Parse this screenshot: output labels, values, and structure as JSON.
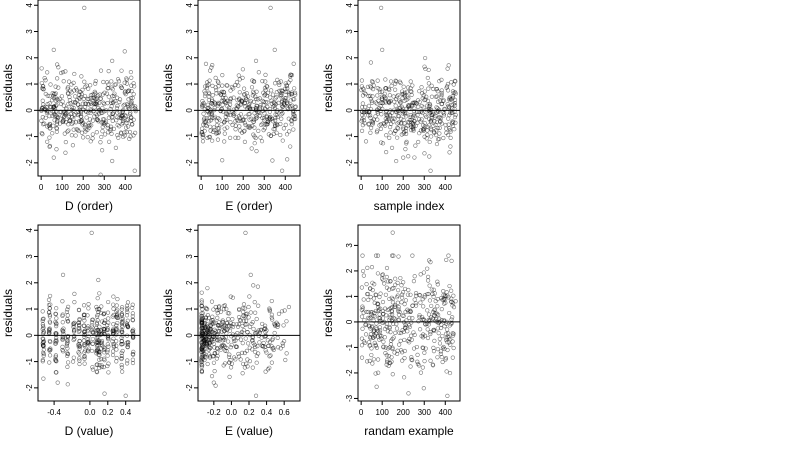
{
  "figure": {
    "background": "#ffffff",
    "point_color": "#000000",
    "zero_line_color": "#000000"
  },
  "chart_data": [
    {
      "type": "scatter",
      "title": "",
      "xlabel": "D (order)",
      "ylabel": "residuals",
      "xlim": [
        -15,
        470
      ],
      "ylim": [
        -2.5,
        4.2
      ],
      "xticks": [
        "0",
        "100",
        "200",
        "300",
        "400"
      ],
      "xtick_values": [
        0,
        100,
        200,
        300,
        400
      ],
      "yticks": [
        "-2",
        "-1",
        "0",
        "1",
        "2",
        "3",
        "4"
      ],
      "ytick_values": [
        -2,
        -1,
        0,
        1,
        2,
        3,
        4
      ],
      "reference_line_y": 0,
      "grid": false,
      "legend": "none",
      "points": {
        "n": 450,
        "x_range": [
          0,
          450
        ],
        "y_spread": 0.65,
        "seed": 11,
        "outliers": [
          [
            205,
            3.9
          ],
          [
            60,
            2.3
          ],
          [
            445,
            -2.3
          ],
          [
            60,
            -1.8
          ]
        ]
      }
    },
    {
      "type": "scatter",
      "title": "",
      "xlabel": "E (order)",
      "ylabel": "residuals",
      "xlim": [
        -15,
        470
      ],
      "ylim": [
        -2.5,
        4.2
      ],
      "xticks": [
        "0",
        "100",
        "200",
        "300",
        "400"
      ],
      "xtick_values": [
        0,
        100,
        200,
        300,
        400
      ],
      "yticks": [
        "-2",
        "-1",
        "0",
        "1",
        "2",
        "3",
        "4"
      ],
      "ytick_values": [
        -2,
        -1,
        0,
        1,
        2,
        3,
        4
      ],
      "reference_line_y": 0,
      "grid": false,
      "legend": "none",
      "points": {
        "n": 450,
        "x_range": [
          0,
          450
        ],
        "y_spread": 0.65,
        "seed": 23,
        "outliers": [
          [
            330,
            3.9
          ],
          [
            350,
            2.3
          ],
          [
            385,
            -2.3
          ],
          [
            100,
            -1.9
          ]
        ]
      }
    },
    {
      "type": "scatter",
      "title": "",
      "xlabel": "sample index",
      "ylabel": "residuals",
      "xlim": [
        -15,
        470
      ],
      "ylim": [
        -2.5,
        4.2
      ],
      "xticks": [
        "0",
        "100",
        "200",
        "300",
        "400"
      ],
      "xtick_values": [
        0,
        100,
        200,
        300,
        400
      ],
      "yticks": [
        "-2",
        "-1",
        "0",
        "1",
        "2",
        "3",
        "4"
      ],
      "ytick_values": [
        -2,
        -1,
        0,
        1,
        2,
        3,
        4
      ],
      "reference_line_y": 0,
      "grid": false,
      "legend": "none",
      "points": {
        "n": 450,
        "x_range": [
          0,
          450
        ],
        "y_spread": 0.65,
        "seed": 37,
        "outliers": [
          [
            95,
            3.9
          ],
          [
            100,
            2.3
          ],
          [
            330,
            -2.3
          ],
          [
            200,
            -1.8
          ]
        ]
      }
    },
    {
      "type": "scatter",
      "title": "",
      "xlabel": "D (value)",
      "ylabel": "residuals",
      "xlim": [
        -0.58,
        0.56
      ],
      "ylim": [
        -2.5,
        4.2
      ],
      "xticks": [
        "-0.4",
        "0.0",
        "0.2",
        "0.4"
      ],
      "xtick_values": [
        -0.4,
        0.0,
        0.2,
        0.4
      ],
      "yticks": [
        "-2",
        "-1",
        "0",
        "1",
        "2",
        "3",
        "4"
      ],
      "ytick_values": [
        -2,
        -1,
        0,
        1,
        2,
        3,
        4
      ],
      "reference_line_y": 0,
      "grid": false,
      "legend": "none",
      "points": {
        "n": 450,
        "x_levels": [
          -0.52,
          -0.45,
          -0.38,
          -0.3,
          -0.25,
          -0.18,
          -0.12,
          -0.06,
          -0.02,
          0.03,
          0.08,
          0.1,
          0.13,
          0.16,
          0.2,
          0.26,
          0.3,
          0.36,
          0.42,
          0.48
        ],
        "x_jitter": 0.008,
        "y_spread": 0.65,
        "seed": 53,
        "outliers": [
          [
            0.02,
            3.9
          ],
          [
            -0.3,
            2.3
          ],
          [
            0.4,
            -2.3
          ],
          [
            -0.36,
            -1.8
          ]
        ]
      }
    },
    {
      "type": "scatter",
      "title": "",
      "xlabel": "E (value)",
      "ylabel": "residuals",
      "xlim": [
        -0.38,
        0.78
      ],
      "ylim": [
        -2.5,
        4.2
      ],
      "xticks": [
        "-0.2",
        "0.0",
        "0.2",
        "0.4",
        "0.6"
      ],
      "xtick_values": [
        -0.2,
        0.0,
        0.2,
        0.4,
        0.6
      ],
      "yticks": [
        "-2",
        "-1",
        "0",
        "1",
        "2",
        "3",
        "4"
      ],
      "ytick_values": [
        -2,
        -1,
        0,
        1,
        2,
        3,
        4
      ],
      "reference_line_y": 0,
      "grid": false,
      "legend": "none",
      "points": {
        "n": 450,
        "x_range": [
          -0.34,
          0.66
        ],
        "x_skew": 2.2,
        "y_spread": 0.65,
        "seed": 71,
        "outliers": [
          [
            0.16,
            3.9
          ],
          [
            0.22,
            2.3
          ],
          [
            0.28,
            -2.3
          ],
          [
            -0.2,
            -1.8
          ]
        ]
      }
    },
    {
      "type": "scatter",
      "title": "",
      "xlabel": "randam example",
      "ylabel": "residuals",
      "xlim": [
        -15,
        470
      ],
      "ylim": [
        -3.1,
        3.8
      ],
      "xticks": [
        "0",
        "100",
        "200",
        "300",
        "400"
      ],
      "xtick_values": [
        0,
        100,
        200,
        300,
        400
      ],
      "yticks": [
        "-3",
        "-2",
        "-1",
        "0",
        "1",
        "2",
        "3"
      ],
      "ytick_values": [
        -3,
        -2,
        -1,
        0,
        1,
        2,
        3
      ],
      "reference_line_y": 0,
      "grid": false,
      "legend": "none",
      "points": {
        "n": 450,
        "x_range": [
          0,
          450
        ],
        "y_spread": 1.0,
        "seed": 97,
        "outliers": [
          [
            150,
            3.5
          ],
          [
            225,
            -2.8
          ],
          [
            410,
            -2.9
          ],
          [
            80,
            2.6
          ]
        ]
      }
    }
  ]
}
